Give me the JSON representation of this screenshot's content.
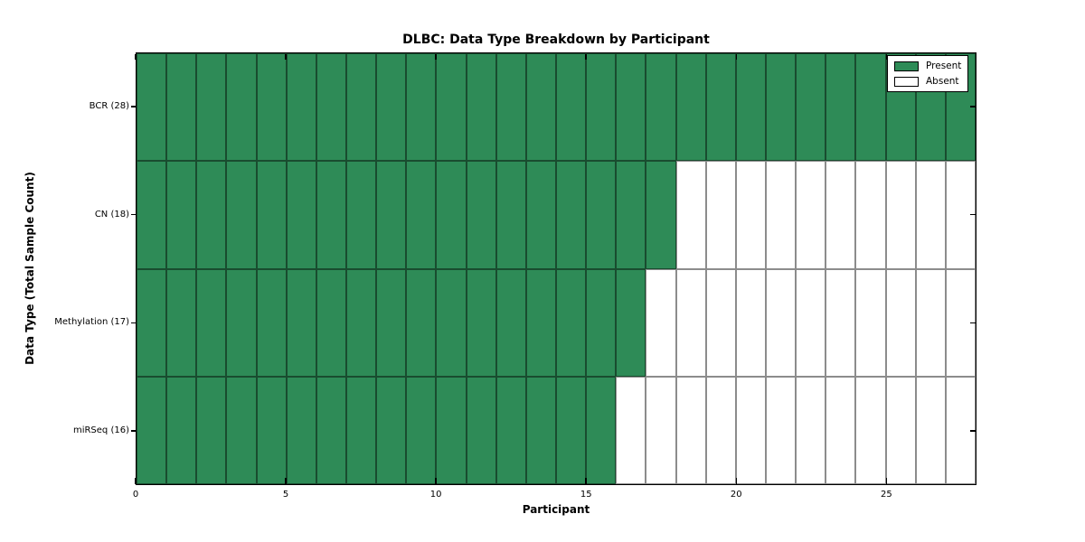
{
  "chart_data": {
    "type": "heatmap",
    "title": "DLBC: Data Type Breakdown by Participant",
    "xlabel": "Participant",
    "ylabel": "Data Type (Total Sample Count)",
    "n_participants": 28,
    "xlim": [
      0,
      28
    ],
    "x_ticks": [
      0,
      5,
      10,
      15,
      20,
      25
    ],
    "grid": true,
    "legend_position": "upper right",
    "rows": [
      {
        "label": "BCR (28)",
        "data_type": "BCR",
        "total_samples": 28,
        "present_count": 28
      },
      {
        "label": "CN (18)",
        "data_type": "CN",
        "total_samples": 18,
        "present_count": 18
      },
      {
        "label": "Methylation (17)",
        "data_type": "Methylation",
        "total_samples": 17,
        "present_count": 17
      },
      {
        "label": "miRSeq (16)",
        "data_type": "miRSeq",
        "total_samples": 16,
        "present_count": 16
      }
    ],
    "legend": [
      {
        "label": "Present",
        "color": "#2E8B57"
      },
      {
        "label": "Absent",
        "color": "#FFFFFF"
      }
    ],
    "colors": {
      "present": "#2E8B57",
      "absent": "#FFFFFF",
      "cell_border": "rgba(0,0,0,0.45)",
      "spine": "#000000"
    }
  }
}
